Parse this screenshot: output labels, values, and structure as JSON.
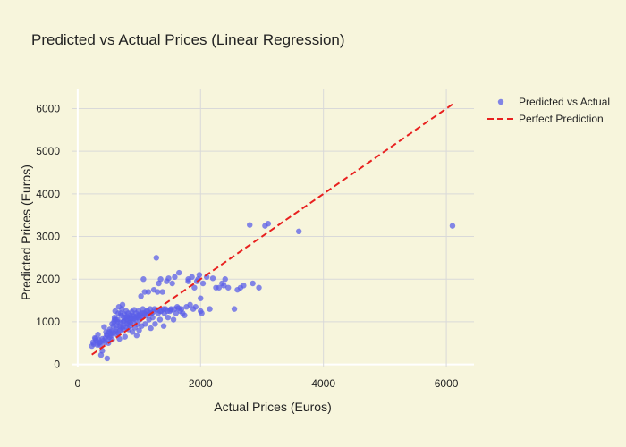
{
  "chart_data": {
    "type": "scatter",
    "title": "Predicted vs Actual Prices (Linear Regression)",
    "xlabel": "Actual Prices (Euros)",
    "ylabel": "Predicted Prices (Euros)",
    "xlim": [
      -100,
      6450
    ],
    "ylim": [
      -50,
      6450
    ],
    "xticks": [
      0,
      2000,
      4000,
      6000
    ],
    "yticks": [
      0,
      1000,
      2000,
      3000,
      4000,
      5000,
      6000
    ],
    "grid": true,
    "legend_position": "top-right",
    "series": [
      {
        "name": "Predicted vs Actual",
        "kind": "markers",
        "color": "#5b5fe8",
        "points": [
          [
            230,
            430
          ],
          [
            260,
            480
          ],
          [
            300,
            560
          ],
          [
            280,
            620
          ],
          [
            330,
            700
          ],
          [
            350,
            500
          ],
          [
            370,
            450
          ],
          [
            380,
            220
          ],
          [
            400,
            320
          ],
          [
            420,
            560
          ],
          [
            430,
            880
          ],
          [
            450,
            620
          ],
          [
            470,
            700
          ],
          [
            480,
            140
          ],
          [
            500,
            500
          ],
          [
            510,
            760
          ],
          [
            520,
            640
          ],
          [
            540,
            720
          ],
          [
            550,
            780
          ],
          [
            560,
            580
          ],
          [
            580,
            900
          ],
          [
            590,
            1000
          ],
          [
            600,
            1100
          ],
          [
            610,
            1250
          ],
          [
            620,
            820
          ],
          [
            630,
            920
          ],
          [
            640,
            700
          ],
          [
            650,
            1050
          ],
          [
            660,
            1200
          ],
          [
            670,
            1350
          ],
          [
            680,
            600
          ],
          [
            690,
            800
          ],
          [
            700,
            980
          ],
          [
            710,
            1150
          ],
          [
            720,
            1300
          ],
          [
            730,
            1400
          ],
          [
            740,
            880
          ],
          [
            750,
            1020
          ],
          [
            760,
            1180
          ],
          [
            770,
            650
          ],
          [
            780,
            1100
          ],
          [
            790,
            1250
          ],
          [
            800,
            950
          ],
          [
            810,
            1060
          ],
          [
            820,
            1200
          ],
          [
            830,
            820
          ],
          [
            840,
            1000
          ],
          [
            850,
            1150
          ],
          [
            860,
            900
          ],
          [
            870,
            1080
          ],
          [
            880,
            1230
          ],
          [
            890,
            760
          ],
          [
            900,
            1000
          ],
          [
            910,
            1120
          ],
          [
            920,
            1280
          ],
          [
            930,
            860
          ],
          [
            940,
            1050
          ],
          [
            950,
            1200
          ],
          [
            960,
            680
          ],
          [
            970,
            940
          ],
          [
            980,
            1100
          ],
          [
            990,
            1250
          ],
          [
            1000,
            800
          ],
          [
            1010,
            1050
          ],
          [
            1020,
            1180
          ],
          [
            1030,
            1600
          ],
          [
            1040,
            900
          ],
          [
            1050,
            1100
          ],
          [
            1060,
            1300
          ],
          [
            1070,
            2000
          ],
          [
            1080,
            1200
          ],
          [
            1090,
            1700
          ],
          [
            1100,
            950
          ],
          [
            1120,
            1150
          ],
          [
            1140,
            1250
          ],
          [
            1150,
            1700
          ],
          [
            1160,
            1050
          ],
          [
            1180,
            1300
          ],
          [
            1190,
            850
          ],
          [
            1200,
            1200
          ],
          [
            1220,
            1100
          ],
          [
            1240,
            1750
          ],
          [
            1250,
            1300
          ],
          [
            1260,
            950
          ],
          [
            1280,
            2500
          ],
          [
            1300,
            1700
          ],
          [
            1310,
            1200
          ],
          [
            1320,
            1900
          ],
          [
            1340,
            1050
          ],
          [
            1350,
            2000
          ],
          [
            1360,
            1250
          ],
          [
            1380,
            1700
          ],
          [
            1400,
            900
          ],
          [
            1410,
            1200
          ],
          [
            1430,
            1300
          ],
          [
            1450,
            1950
          ],
          [
            1470,
            1100
          ],
          [
            1480,
            2020
          ],
          [
            1500,
            1250
          ],
          [
            1520,
            1300
          ],
          [
            1540,
            1900
          ],
          [
            1560,
            1050
          ],
          [
            1580,
            2050
          ],
          [
            1600,
            1200
          ],
          [
            1620,
            1350
          ],
          [
            1650,
            2150
          ],
          [
            1670,
            1250
          ],
          [
            1690,
            1300
          ],
          [
            1710,
            1200
          ],
          [
            1740,
            1150
          ],
          [
            1770,
            1350
          ],
          [
            1800,
            2000
          ],
          [
            1800,
            1950
          ],
          [
            1830,
            1400
          ],
          [
            1860,
            2050
          ],
          [
            1880,
            1300
          ],
          [
            1900,
            1800
          ],
          [
            1920,
            1350
          ],
          [
            1940,
            1950
          ],
          [
            1960,
            2000
          ],
          [
            1980,
            2100
          ],
          [
            2000,
            1250
          ],
          [
            2000,
            1550
          ],
          [
            2020,
            1200
          ],
          [
            2040,
            1900
          ],
          [
            2100,
            2050
          ],
          [
            2150,
            1300
          ],
          [
            2200,
            2020
          ],
          [
            2250,
            1800
          ],
          [
            2300,
            1800
          ],
          [
            2350,
            1900
          ],
          [
            2380,
            1850
          ],
          [
            2400,
            2000
          ],
          [
            2450,
            1800
          ],
          [
            2550,
            1300
          ],
          [
            2600,
            1750
          ],
          [
            2650,
            1800
          ],
          [
            2700,
            1850
          ],
          [
            2850,
            1900
          ],
          [
            2950,
            1800
          ],
          [
            2800,
            3270
          ],
          [
            3050,
            3250
          ],
          [
            3100,
            3300
          ],
          [
            3600,
            3120
          ],
          [
            6100,
            3250
          ],
          [
            600,
            1050
          ],
          [
            650,
            1000
          ],
          [
            700,
            1200
          ],
          [
            750,
            1100
          ],
          [
            800,
            1050
          ],
          [
            850,
            1100
          ],
          [
            900,
            1150
          ],
          [
            950,
            1100
          ],
          [
            1000,
            1150
          ],
          [
            1050,
            1200
          ],
          [
            560,
            950
          ],
          [
            620,
            1050
          ],
          [
            680,
            900
          ],
          [
            740,
            1000
          ],
          [
            800,
            1120
          ],
          [
            860,
            1050
          ],
          [
            920,
            1080
          ],
          [
            980,
            1150
          ],
          [
            1040,
            1100
          ],
          [
            1100,
            1180
          ],
          [
            1120,
            1250
          ],
          [
            1180,
            1200
          ],
          [
            1230,
            1230
          ],
          [
            1290,
            1280
          ],
          [
            1340,
            1250
          ],
          [
            1400,
            1300
          ],
          [
            1460,
            1250
          ],
          [
            1520,
            1280
          ],
          [
            1580,
            1300
          ],
          [
            1640,
            1320
          ],
          [
            500,
            600
          ],
          [
            540,
            680
          ],
          [
            580,
            740
          ],
          [
            620,
            780
          ],
          [
            660,
            740
          ],
          [
            700,
            860
          ],
          [
            740,
            820
          ],
          [
            780,
            880
          ],
          [
            820,
            940
          ],
          [
            860,
            980
          ],
          [
            400,
            600
          ],
          [
            440,
            520
          ],
          [
            480,
            680
          ],
          [
            360,
            520
          ],
          [
            320,
            460
          ],
          [
            250,
            520
          ],
          [
            290,
            600
          ],
          [
            340,
            580
          ],
          [
            460,
            760
          ],
          [
            520,
            820
          ]
        ]
      },
      {
        "name": "Perfect Prediction",
        "kind": "line",
        "color": "#e8201f",
        "dash": "dashed",
        "points": [
          [
            230,
            230
          ],
          [
            6100,
            6100
          ]
        ]
      }
    ]
  }
}
